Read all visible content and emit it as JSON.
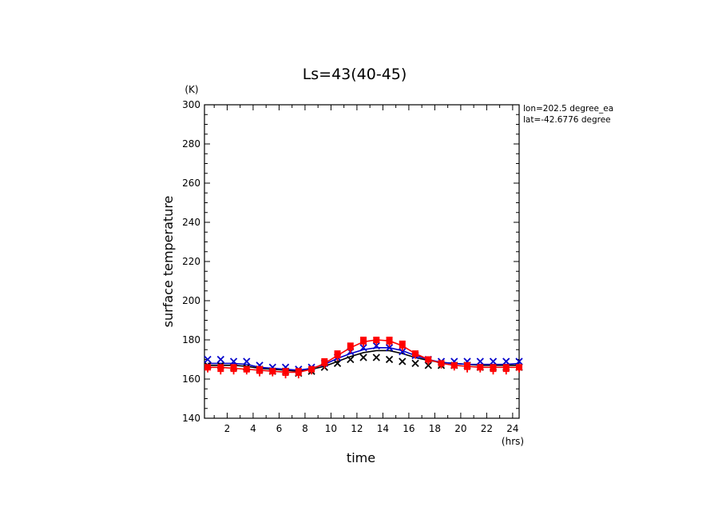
{
  "chart_data": {
    "type": "line",
    "title": "Ls=43(40-45)",
    "xlabel": "time",
    "xunit": "(hrs)",
    "ylabel": "surface temperature",
    "yunit": "(K)",
    "xlim": [
      0.25,
      24.5
    ],
    "ylim": [
      140,
      300
    ],
    "xticks": [
      2,
      4,
      6,
      8,
      10,
      12,
      14,
      16,
      18,
      20,
      22,
      24
    ],
    "yticks": [
      140,
      160,
      180,
      200,
      220,
      240,
      260,
      280,
      300
    ],
    "annotations": [
      "lon=202.5 degree_ea",
      "lat=-42.6776 degree"
    ],
    "grid": false,
    "x": [
      0.5,
      1.5,
      2.5,
      3.5,
      4.5,
      5.5,
      6.5,
      7.5,
      8.5,
      9.5,
      10.5,
      11.5,
      12.5,
      13.5,
      14.5,
      15.5,
      16.5,
      17.5,
      18.5,
      19.5,
      20.5,
      21.5,
      22.5,
      23.5,
      24.5
    ],
    "series": [
      {
        "color": "#000000",
        "kind": "line",
        "values": [
          167,
          167,
          167,
          166.5,
          165.5,
          165,
          164.5,
          164,
          165,
          166.5,
          169,
          171.5,
          173.5,
          174.5,
          174.5,
          173,
          171,
          169.5,
          168.5,
          168,
          167.5,
          167,
          167,
          167,
          167
        ]
      },
      {
        "color": "#0000cc",
        "kind": "line",
        "values": [
          168,
          168,
          168,
          167.5,
          166,
          165.5,
          165,
          164.5,
          165.5,
          167.5,
          170.5,
          173,
          175,
          176,
          176,
          174.5,
          172,
          170,
          168.5,
          168,
          167.5,
          167.5,
          167.5,
          167.5,
          168
        ]
      },
      {
        "color": "#ff0000",
        "kind": "line",
        "values": [
          166,
          166,
          165.5,
          165,
          164.5,
          164,
          163.5,
          163.5,
          165,
          168,
          172,
          176,
          179,
          180,
          179.5,
          177,
          173,
          170,
          168,
          167,
          166.5,
          166,
          166,
          166,
          166
        ]
      },
      {
        "color": "#000000",
        "kind": "markers-x",
        "values": [
          167,
          167,
          166,
          166,
          165,
          164,
          164,
          163,
          164,
          166,
          168,
          170,
          171,
          171,
          170,
          169,
          168,
          167,
          167,
          167,
          167,
          166,
          166,
          166,
          166
        ]
      },
      {
        "color": "#0000cc",
        "kind": "markers-x",
        "values": [
          170,
          170,
          169,
          169,
          167,
          166,
          166,
          165,
          166,
          168,
          171,
          174,
          176,
          177,
          176,
          174,
          172,
          170,
          169,
          169,
          169,
          169,
          169,
          169,
          169
        ]
      },
      {
        "color": "#ff0000",
        "kind": "markers-square",
        "values": [
          166,
          166,
          166,
          165,
          165,
          164,
          164,
          164,
          165,
          169,
          173,
          177,
          180,
          180,
          180,
          178,
          173,
          170,
          168,
          167,
          167,
          166,
          166,
          166,
          166
        ]
      },
      {
        "color": "#ff0000",
        "kind": "markers-plus",
        "values": [
          165,
          164,
          164,
          164,
          163,
          163,
          162,
          162,
          164,
          167,
          171,
          175,
          178,
          179,
          178,
          176,
          172,
          169,
          167,
          166,
          165,
          165,
          164,
          164,
          165
        ]
      }
    ]
  }
}
